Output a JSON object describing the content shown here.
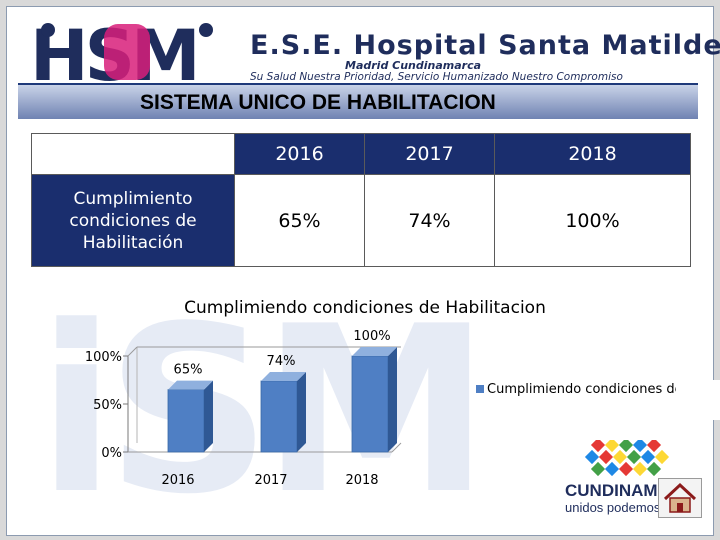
{
  "header": {
    "logo_text": "HSM",
    "hospital_name": "E.S.E. Hospital Santa Matilde",
    "subtitle": "Madrid Cundinamarca",
    "motto": "Su Salud Nuestra Prioridad, Servicio Humanizado Nuestro Compromiso"
  },
  "banner": {
    "title": "SISTEMA UNICO DE HABILITACION"
  },
  "table": {
    "years": [
      "2016",
      "2017",
      "2018"
    ],
    "row_label": "Cumplimiento condiciones de Habilitación",
    "row_values": [
      "65%",
      "74%",
      "100%"
    ]
  },
  "colors": {
    "navy": "#1a2e6e",
    "bar": "#4f7fc4",
    "bar_side": "#2f5894",
    "bar_top": "#8fb0de"
  },
  "chart_data": {
    "type": "bar",
    "title": "Cumplimiendo condiciones de Habilitacion",
    "categories": [
      "2016",
      "2017",
      "2018"
    ],
    "series": [
      {
        "name": "Cumplimiendo condiciones de Habilitacion",
        "values": [
          65,
          74,
          100
        ]
      }
    ],
    "data_labels": [
      "65%",
      "74%",
      "100%"
    ],
    "ylim": [
      0,
      100
    ],
    "yticks": [
      0,
      50,
      100
    ],
    "ytick_labels": [
      "0%",
      "50%",
      "100%"
    ],
    "legend_position": "right",
    "legend_text": "Cumplimiendo condiciones de Habilitacion",
    "xlabel": "",
    "ylabel": ""
  },
  "footer": {
    "brand": "CUNDINAMARCA",
    "tagline": "unidos podemos más"
  }
}
